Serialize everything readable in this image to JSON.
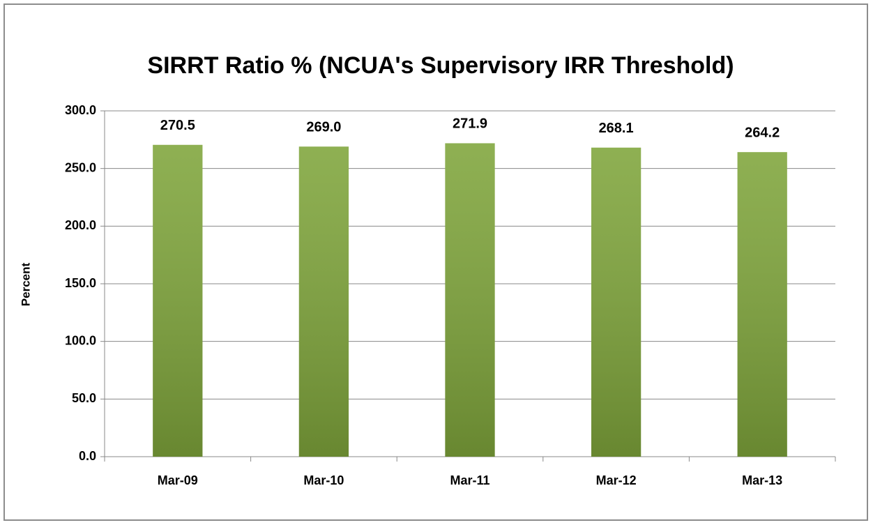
{
  "chart_data": {
    "type": "bar",
    "title": "SIRRT Ratio % (NCUA's Supervisory IRR Threshold)",
    "y_label": "Percent",
    "categories": [
      "Mar-09",
      "Mar-10",
      "Mar-11",
      "Mar-12",
      "Mar-13"
    ],
    "values": [
      270.5,
      269.0,
      271.9,
      268.1,
      264.2
    ],
    "value_labels": [
      "270.5",
      "269.0",
      "271.9",
      "268.1",
      "264.2"
    ],
    "color": "#7fa53b",
    "ylim": [
      0,
      300
    ],
    "yticks": [
      {
        "value": 0,
        "label": "0.0"
      },
      {
        "value": 50,
        "label": "50.0"
      },
      {
        "value": 100,
        "label": "100.0"
      },
      {
        "value": 150,
        "label": "150.0"
      },
      {
        "value": 200,
        "label": "200.0"
      },
      {
        "value": 250,
        "label": "250.0"
      },
      {
        "value": 300,
        "label": "300.0"
      }
    ],
    "grid": true
  }
}
